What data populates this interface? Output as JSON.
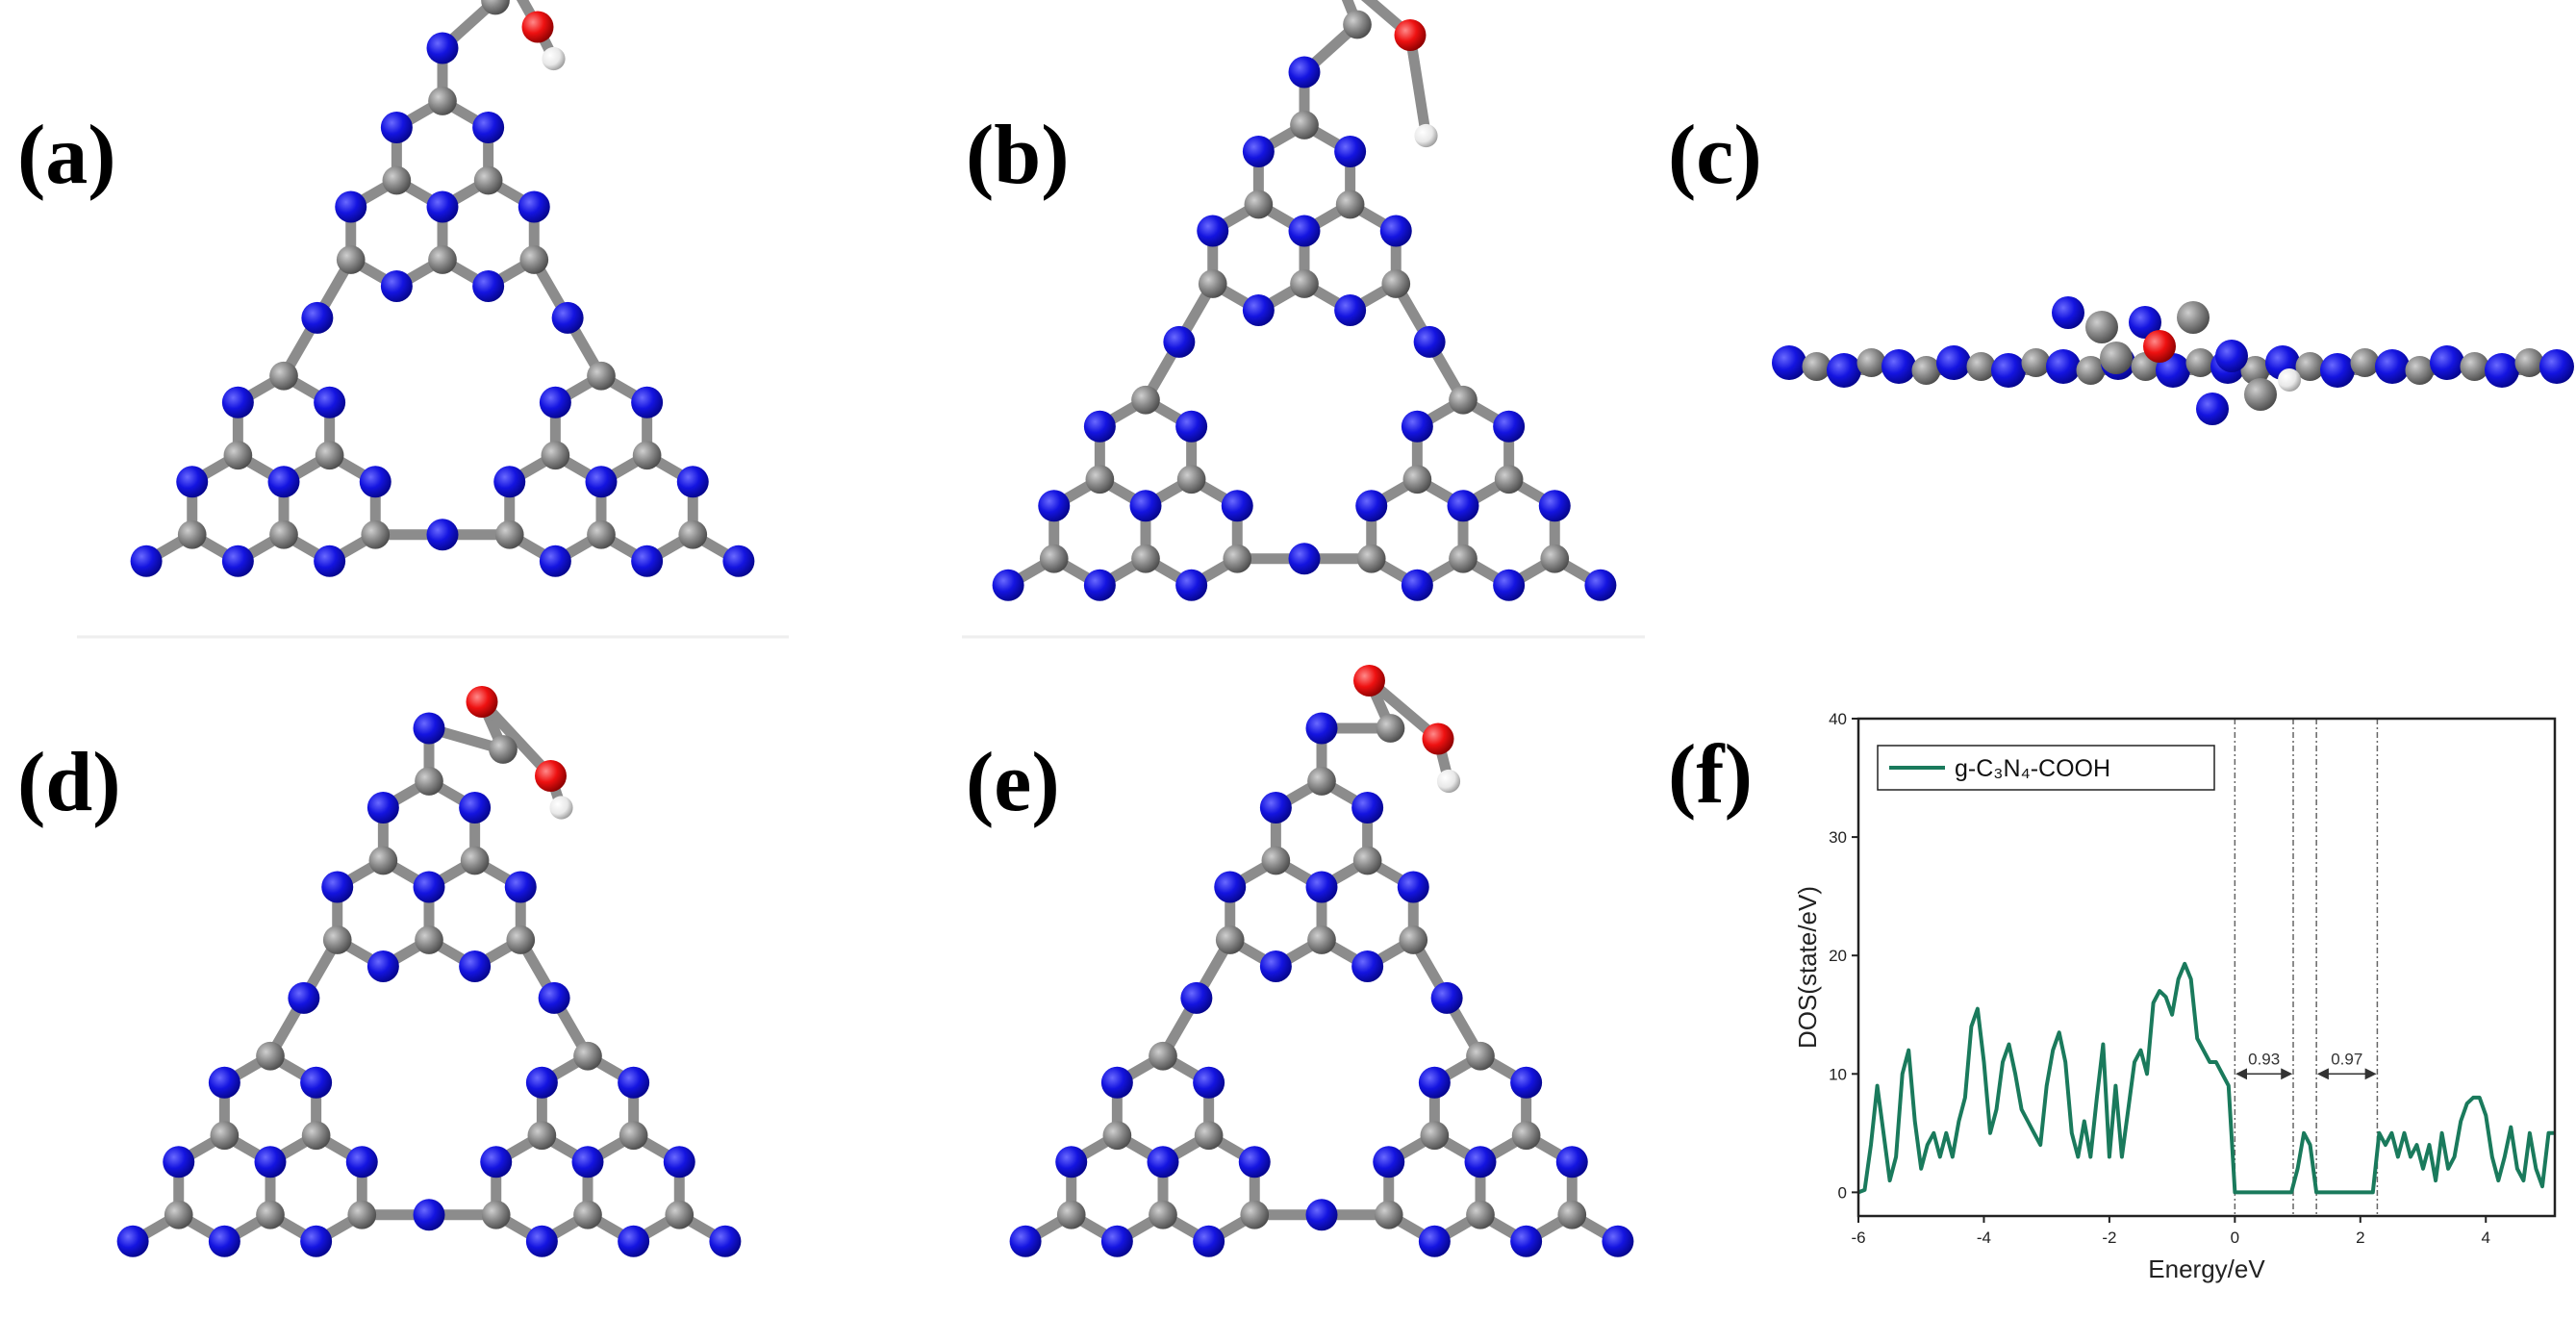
{
  "panel_labels": [
    "(a)",
    "(b)",
    "(c)",
    "(d)",
    "(e)",
    "(f)"
  ],
  "chart_data": {
    "type": "line",
    "xlabel": "Energy/eV",
    "ylabel": "DOS(state/eV)",
    "x": [
      -6,
      -5.9,
      -5.8,
      -5.7,
      -5.6,
      -5.5,
      -5.4,
      -5.3,
      -5.2,
      -5.1,
      -5,
      -4.9,
      -4.8,
      -4.7,
      -4.6,
      -4.5,
      -4.4,
      -4.3,
      -4.2,
      -4.1,
      -4,
      -3.9,
      -3.8,
      -3.7,
      -3.6,
      -3.5,
      -3.4,
      -3.3,
      -3.2,
      -3.1,
      -3,
      -2.9,
      -2.8,
      -2.7,
      -2.6,
      -2.5,
      -2.4,
      -2.3,
      -2.2,
      -2.1,
      -2,
      -1.9,
      -1.8,
      -1.7,
      -1.6,
      -1.5,
      -1.4,
      -1.3,
      -1.2,
      -1.1,
      -1,
      -0.9,
      -0.8,
      -0.7,
      -0.6,
      -0.5,
      -0.4,
      -0.3,
      -0.2,
      -0.1,
      0,
      0.5,
      0.9,
      1,
      1.1,
      1.2,
      1.3,
      1.8,
      2.2,
      2.3,
      2.4,
      2.5,
      2.6,
      2.7,
      2.8,
      2.9,
      3,
      3.1,
      3.2,
      3.3,
      3.4,
      3.5,
      3.6,
      3.7,
      3.8,
      3.9,
      4,
      4.1,
      4.2,
      4.3,
      4.4,
      4.5,
      4.6,
      4.7,
      4.8,
      4.9,
      5,
      5.1
    ],
    "series": [
      {
        "name": "g-C₃N₄-COOH",
        "color": "#1a7a5c",
        "values": [
          0,
          0.2,
          4,
          9,
          5,
          1,
          3,
          10,
          12,
          6,
          2,
          4,
          5,
          3,
          5,
          3,
          6,
          8,
          14,
          15.5,
          11,
          5,
          7,
          11,
          12.5,
          10,
          7,
          6,
          5,
          4,
          9,
          12,
          13.5,
          11,
          5,
          3,
          6,
          3,
          8,
          12.5,
          3,
          9,
          3,
          7,
          11,
          12,
          10,
          16,
          17,
          16.5,
          15,
          18,
          19.3,
          18,
          13,
          12,
          11,
          11,
          10,
          9,
          0,
          0,
          0,
          2,
          5,
          4,
          0,
          0,
          0,
          5,
          4,
          5,
          3,
          5,
          3,
          4,
          2,
          4,
          1,
          5,
          2,
          3,
          6,
          7.5,
          8,
          8,
          6.5,
          3,
          1,
          3,
          5.5,
          2,
          1,
          5,
          2,
          0.5,
          5,
          5
        ]
      }
    ],
    "xlim": [
      -6,
      5.1
    ],
    "ylim": [
      -2,
      40
    ],
    "xticks": [
      -6,
      -4,
      -2,
      0,
      2,
      4
    ],
    "yticks": [
      0,
      10,
      20,
      30,
      40
    ],
    "annotations": [
      {
        "label": "0.93",
        "x": [
          0,
          0.93
        ],
        "y": 10
      },
      {
        "label": "0.97",
        "x": [
          1.3,
          2.27
        ],
        "y": 10
      }
    ],
    "legend": "upper left"
  }
}
